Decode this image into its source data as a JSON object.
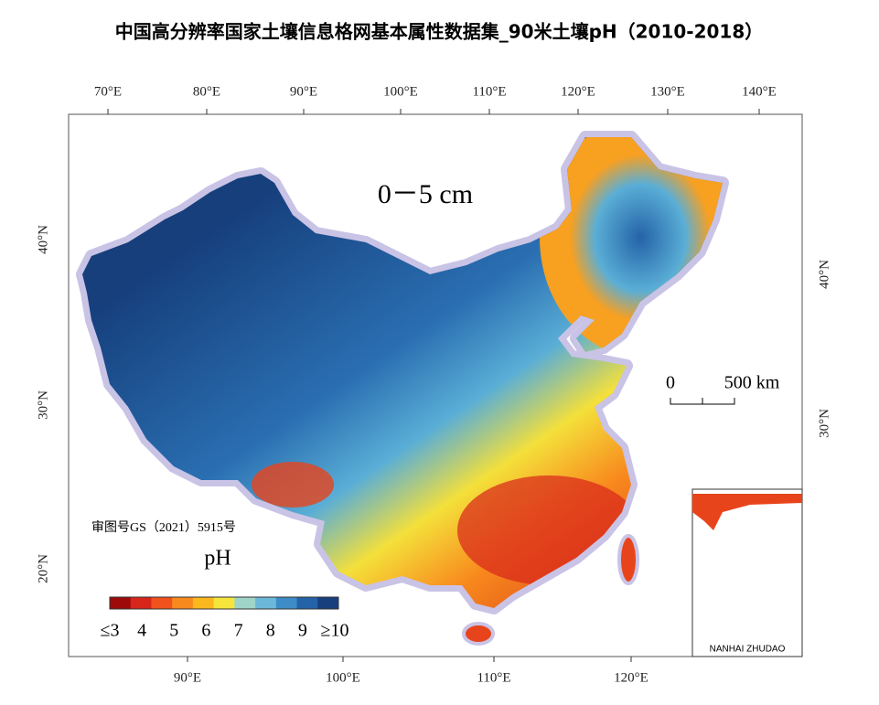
{
  "title": "中国高分辨率国家土壤信息格网基本属性数据集_90米土壤pH（2010-2018）",
  "map": {
    "depth_label": "0－5 cm",
    "top_longitudes": [
      "70°E",
      "80°E",
      "90°E",
      "100°E",
      "110°E",
      "120°E",
      "130°E",
      "140°E"
    ],
    "bottom_longitudes": [
      "90°E",
      "100°E",
      "110°E",
      "120°E"
    ],
    "left_latitudes": [
      "40°N",
      "30°N",
      "20°N"
    ],
    "right_latitudes": [
      "40°N",
      "30°N"
    ],
    "scale_bar": {
      "start": "0",
      "end": "500 km"
    },
    "approval_number": "审图号GS（2021）5915号",
    "inset_label": "NANHAI ZHUDAO"
  },
  "legend": {
    "title": "pH",
    "colors": [
      "#9e0a0a",
      "#d8251b",
      "#f0521e",
      "#f8891d",
      "#fbb81e",
      "#f6e53b",
      "#9fd4c8",
      "#6bb7d9",
      "#3d8cc8",
      "#2463a8",
      "#163f7c"
    ],
    "tick_labels": [
      "≤3",
      "4",
      "5",
      "6",
      "7",
      "8",
      "9",
      "≥10"
    ]
  }
}
